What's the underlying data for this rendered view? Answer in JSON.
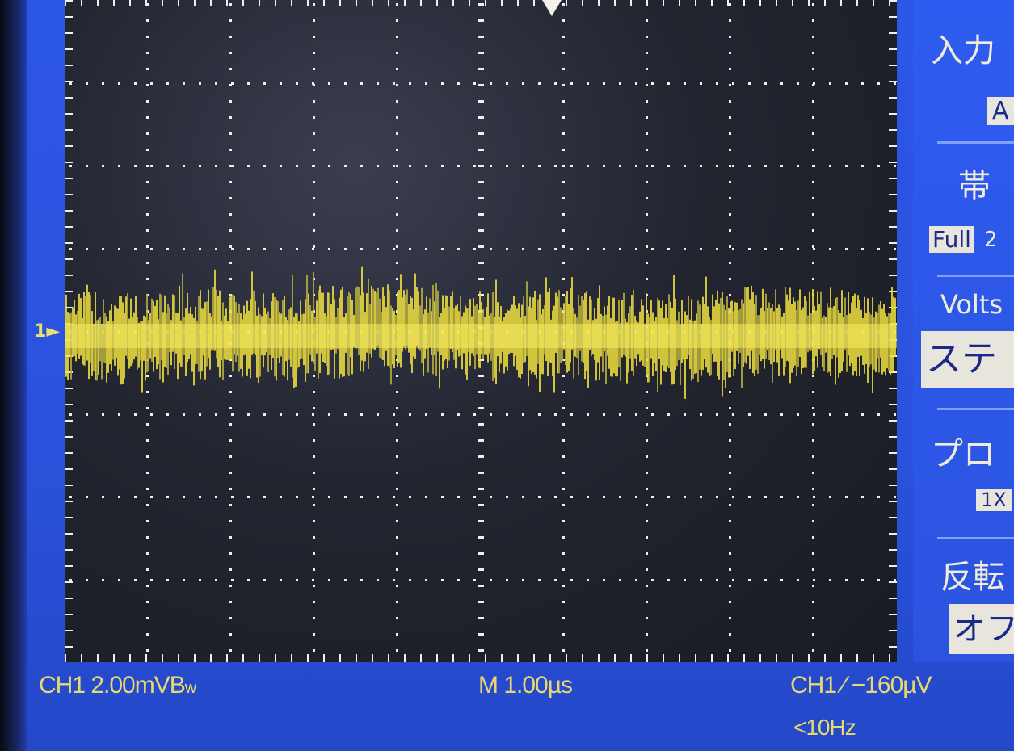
{
  "screen": {
    "grid": {
      "h_divisions": 10,
      "v_divisions": 8
    },
    "trace": {
      "channel": "CH1",
      "color": "#f0e040",
      "marker_label": "1"
    }
  },
  "status_bar": {
    "ch1_scale": "CH1  2.00mVB",
    "bw_suffix": "w",
    "timebase": "M 1.00µs",
    "trigger": "CH1  ∕  −160µV",
    "trigger_freq": "<10Hz"
  },
  "side_menu": {
    "coupling_title": "入力",
    "coupling_value": "A",
    "bandwidth_title": "帯",
    "bandwidth_full": "Full",
    "bandwidth_extra": "2",
    "volts_title": "Volts",
    "volts_value": "ステ",
    "probe_title": "プロ",
    "probe_value": "1X",
    "invert_title": "反転",
    "invert_value": "オフ"
  },
  "colors": {
    "frame": "#2a52dc",
    "text": "#e8d870",
    "trace": "#f0e040"
  }
}
